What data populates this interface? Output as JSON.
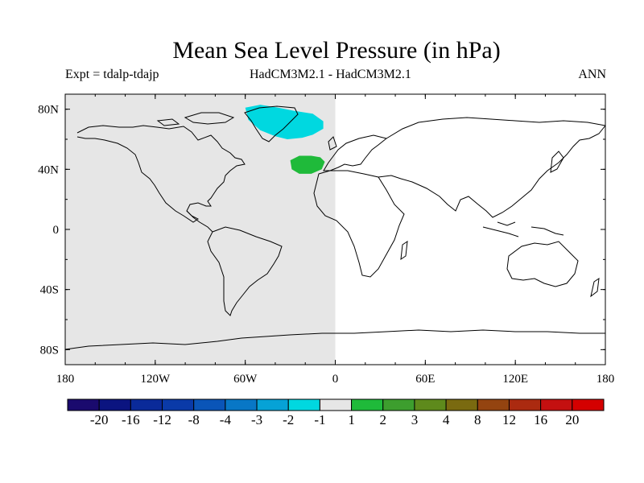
{
  "title": "Mean Sea Level Pressure (in hPa)",
  "subtitle_left": "Expt = tdalp-tdajp",
  "subtitle_center": "HadCM3M2.1 - HadCM3M2.1",
  "subtitle_right": "ANN",
  "chart_data": {
    "type": "heatmap",
    "lon_range": [
      -180,
      180
    ],
    "lat_range": [
      -90,
      90
    ],
    "x_ticks": [
      {
        "value": -180,
        "label": "180"
      },
      {
        "value": -120,
        "label": "120W"
      },
      {
        "value": -60,
        "label": "60W"
      },
      {
        "value": 0,
        "label": "0"
      },
      {
        "value": 60,
        "label": "60E"
      },
      {
        "value": 120,
        "label": "120E"
      },
      {
        "value": 180,
        "label": "180"
      }
    ],
    "y_ticks": [
      {
        "value": 80,
        "label": "80N"
      },
      {
        "value": 40,
        "label": "40N"
      },
      {
        "value": 0,
        "label": "0"
      },
      {
        "value": -40,
        "label": "40S"
      },
      {
        "value": -80,
        "label": "80S"
      }
    ],
    "shaded_regions": [
      {
        "category": "-1 to 1",
        "color": "#e6e6e6",
        "lon": [
          -180,
          0
        ],
        "lat": [
          -90,
          90
        ]
      },
      {
        "category": "-2 to -1",
        "color": "#00d8e0",
        "polygon": [
          [
            -60,
            81
          ],
          [
            -50,
            83
          ],
          [
            -38,
            81
          ],
          [
            -28,
            79
          ],
          [
            -15,
            77
          ],
          [
            -8,
            72
          ],
          [
            -8,
            67
          ],
          [
            -15,
            63
          ],
          [
            -22,
            61
          ],
          [
            -32,
            60
          ],
          [
            -40,
            62
          ],
          [
            -50,
            66
          ],
          [
            -58,
            73
          ]
        ]
      },
      {
        "category": "1 to 2",
        "color": "#1fba3a",
        "polygon": [
          [
            -30,
            46
          ],
          [
            -24,
            49
          ],
          [
            -16,
            49
          ],
          [
            -10,
            48
          ],
          [
            -7,
            45
          ],
          [
            -9,
            40
          ],
          [
            -16,
            37
          ],
          [
            -24,
            37
          ],
          [
            -29,
            40
          ]
        ]
      }
    ],
    "colorbar": {
      "labels": [
        "-20",
        "-16",
        "-12",
        "-8",
        "-4",
        "-3",
        "-2",
        "-1",
        "1",
        "2",
        "3",
        "4",
        "8",
        "12",
        "16",
        "20"
      ],
      "colors": [
        "#1a0a6e",
        "#0b1480",
        "#0a2a99",
        "#0a3aa8",
        "#0a55b8",
        "#0877c6",
        "#06a2d6",
        "#00d8e0",
        "#e6e6e6",
        "#1fba3a",
        "#3d9e2e",
        "#5e8a1c",
        "#7a6a10",
        "#944410",
        "#ab2a10",
        "#c41010",
        "#d40000"
      ]
    }
  }
}
